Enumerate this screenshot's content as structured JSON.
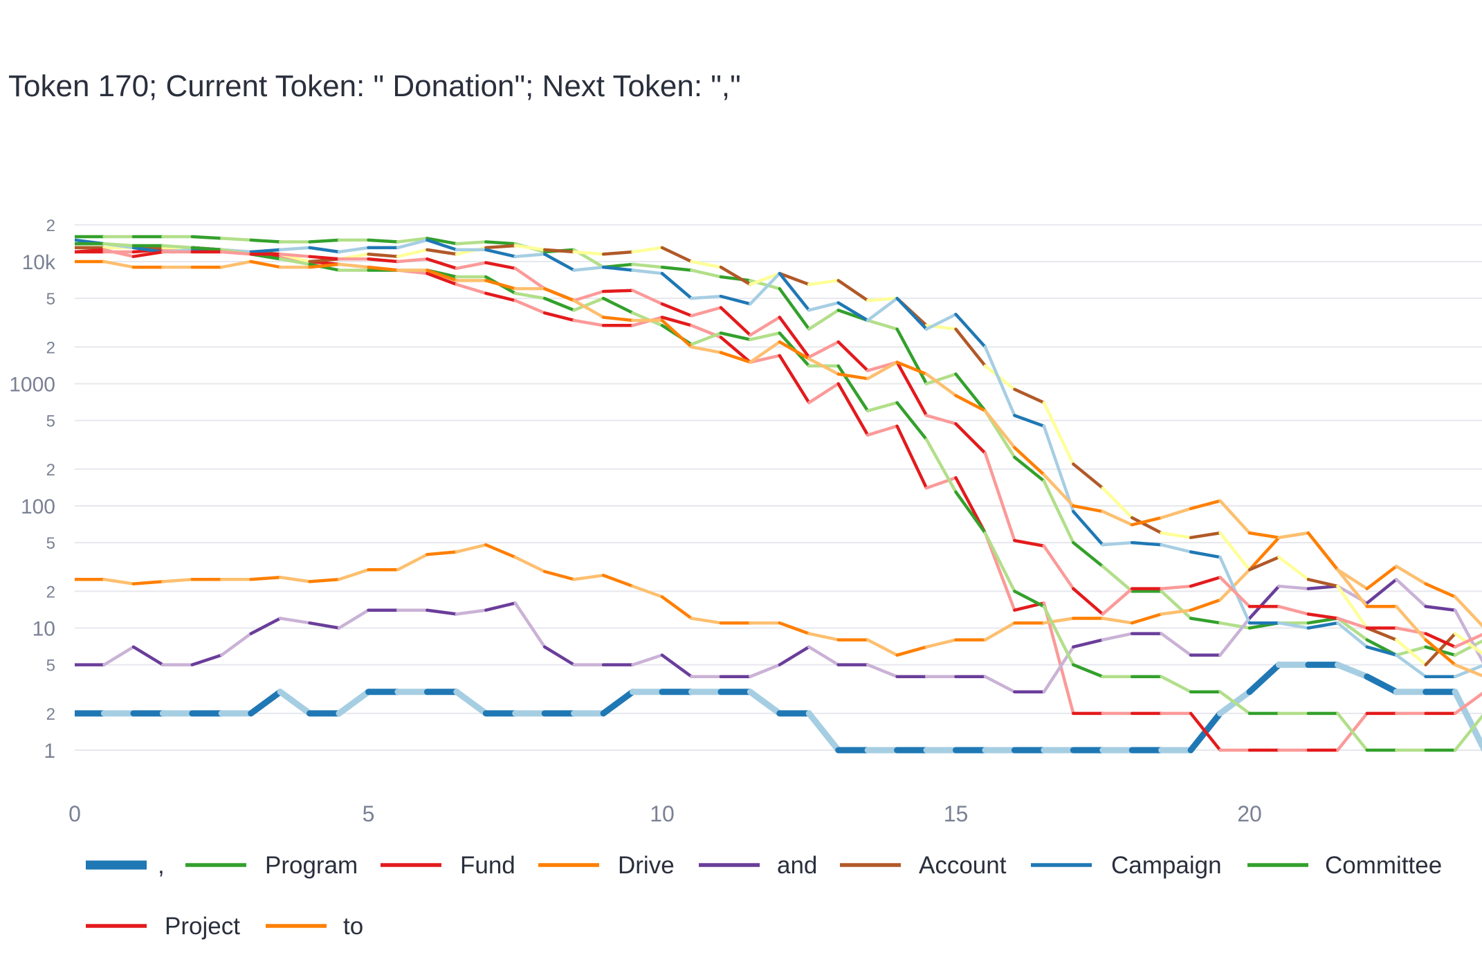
{
  "title": "Token 170; Current Token: \" Donation\"; Next Token: \",\"",
  "chart_data": {
    "type": "line",
    "title": "Token 170; Current Token: \" Donation\"; Next Token: \",\"",
    "y_scale": "log",
    "ylim": [
      0.6,
      26000
    ],
    "xlim": [
      0,
      24
    ],
    "y_major_ticks": [
      {
        "v": 1,
        "label": "1"
      },
      {
        "v": 10,
        "label": "10"
      },
      {
        "v": 100,
        "label": "100"
      },
      {
        "v": 1000,
        "label": "1000"
      },
      {
        "v": 10000,
        "label": "10k"
      }
    ],
    "y_minor_ticks": [
      {
        "v": 2,
        "label": "2"
      },
      {
        "v": 5,
        "label": "5"
      },
      {
        "v": 20,
        "label": "2"
      },
      {
        "v": 50,
        "label": "5"
      },
      {
        "v": 200,
        "label": "2"
      },
      {
        "v": 500,
        "label": "5"
      },
      {
        "v": 2000,
        "label": "2"
      },
      {
        "v": 5000,
        "label": "5"
      },
      {
        "v": 20000,
        "label": "2"
      }
    ],
    "x_ticks": [
      0,
      5,
      10,
      15,
      20
    ],
    "grid": true,
    "legend_position": "bottom",
    "x": [
      0,
      0.5,
      1,
      1.5,
      2,
      2.5,
      3,
      3.5,
      4,
      4.5,
      5,
      5.5,
      6,
      6.5,
      7,
      7.5,
      8,
      8.5,
      9,
      9.5,
      10,
      10.5,
      11,
      11.5,
      12,
      12.5,
      13,
      13.5,
      14,
      14.5,
      15,
      15.5,
      16,
      16.5,
      17,
      17.5,
      18,
      18.5,
      19,
      19.5,
      20,
      20.5,
      21,
      21.5,
      22,
      22.5,
      23,
      23.5,
      24
    ],
    "series": [
      {
        "name": ",",
        "color": "#1f78b4",
        "light": "#a6cee3",
        "width": 9,
        "values": [
          2,
          2,
          2,
          2,
          2,
          2,
          2,
          3,
          2,
          2,
          3,
          3,
          3,
          3,
          2,
          2,
          2,
          2,
          2,
          3,
          3,
          3,
          3,
          3,
          2,
          2,
          1,
          1,
          1,
          1,
          1,
          1,
          1,
          1,
          1,
          1,
          1,
          1,
          1,
          2,
          3,
          5,
          5,
          5,
          4,
          3,
          3,
          3,
          1
        ]
      },
      {
        "name": "Program",
        "color": "#33a02c",
        "light": "#b2df8a",
        "width": 4.5,
        "values": [
          16000,
          16000,
          16000,
          16000,
          16000,
          15500,
          15000,
          14500,
          14500,
          15000,
          15000,
          14500,
          15500,
          14000,
          14500,
          14000,
          12000,
          12500,
          9000,
          9500,
          9000,
          8500,
          7500,
          7000,
          6000,
          2800,
          4000,
          3300,
          2800,
          1000,
          1200,
          600,
          250,
          160,
          50,
          32,
          20,
          20,
          12,
          11,
          10,
          11,
          11,
          12,
          8,
          6,
          7,
          6,
          8
        ]
      },
      {
        "name": "Fund",
        "color": "#e31a1c",
        "light": "#fb9a99",
        "width": 4.5,
        "values": [
          12000,
          12000,
          12000,
          12500,
          13000,
          12500,
          12000,
          11000,
          10000,
          9500,
          9000,
          8500,
          8000,
          6500,
          5500,
          4800,
          3800,
          3300,
          3000,
          3000,
          3500,
          3000,
          2400,
          1500,
          1700,
          700,
          1000,
          380,
          450,
          140,
          170,
          60,
          14,
          16,
          2,
          2,
          2,
          2,
          2,
          1,
          1,
          1,
          1,
          1,
          2,
          2,
          2,
          2,
          3
        ]
      },
      {
        "name": "Drive",
        "color": "#ff7f00",
        "light": "#fdbf6f",
        "width": 4.5,
        "values": [
          25,
          25,
          23,
          24,
          25,
          25,
          25,
          26,
          24,
          25,
          30,
          30,
          40,
          42,
          48,
          38,
          29,
          25,
          27,
          22,
          18,
          12,
          11,
          11,
          11,
          9,
          8,
          8,
          6,
          7,
          8,
          8,
          11,
          11,
          12,
          12,
          11,
          13,
          14,
          17,
          30,
          55,
          60,
          30,
          21,
          32,
          23,
          18,
          10
        ]
      },
      {
        "name": "and",
        "color": "#6a3d9a",
        "light": "#cab2d6",
        "width": 4.5,
        "values": [
          5,
          5,
          7,
          5,
          5,
          6,
          9,
          12,
          11,
          10,
          14,
          14,
          14,
          13,
          14,
          16,
          7,
          5,
          5,
          5,
          6,
          4,
          4,
          4,
          5,
          7,
          5,
          5,
          4,
          4,
          4,
          4,
          3,
          3,
          7,
          8,
          9,
          9,
          6,
          6,
          12,
          22,
          21,
          22,
          16,
          25,
          15,
          14,
          5
        ]
      },
      {
        "name": "Account",
        "color": "#b15928",
        "light": "#ffff99",
        "width": 4.5,
        "values": [
          13000,
          13000,
          13000,
          13000,
          13000,
          12500,
          12000,
          11500,
          10000,
          10500,
          11500,
          11000,
          12500,
          11500,
          13000,
          13500,
          12500,
          12000,
          11500,
          12000,
          13000,
          10000,
          9000,
          6500,
          8000,
          6500,
          7000,
          4800,
          5000,
          3000,
          2800,
          1400,
          900,
          700,
          220,
          140,
          80,
          60,
          55,
          60,
          30,
          38,
          25,
          22,
          10,
          8,
          5,
          9,
          6
        ]
      },
      {
        "name": "Campaign",
        "color": "#1f78b4",
        "light": "#a6cee3",
        "width": 4.5,
        "values": [
          15000,
          14000,
          13000,
          12000,
          12500,
          12500,
          12000,
          12500,
          13000,
          12000,
          13000,
          13000,
          15000,
          12500,
          12500,
          11000,
          11500,
          8500,
          9000,
          8500,
          8000,
          5000,
          5200,
          4500,
          8000,
          4000,
          4600,
          3300,
          5000,
          2800,
          3700,
          2000,
          550,
          450,
          90,
          48,
          50,
          48,
          42,
          38,
          11,
          11,
          10,
          11,
          7,
          6,
          4,
          4,
          5
        ]
      },
      {
        "name": "Committee",
        "color": "#33a02c",
        "light": "#b2df8a",
        "width": 4.5,
        "values": [
          14000,
          14000,
          13500,
          13500,
          13000,
          12500,
          11500,
          10500,
          9500,
          8500,
          8500,
          8500,
          8500,
          7500,
          7500,
          5500,
          5000,
          4000,
          5000,
          3800,
          3000,
          2100,
          2600,
          2300,
          2600,
          1400,
          1400,
          600,
          700,
          350,
          130,
          60,
          20,
          15,
          5,
          4,
          4,
          4,
          3,
          3,
          2,
          2,
          2,
          2,
          1,
          1,
          1,
          1,
          2
        ]
      },
      {
        "name": "Project",
        "color": "#e31a1c",
        "light": "#fb9a99",
        "width": 4.5,
        "values": [
          12000,
          12500,
          11000,
          12000,
          12000,
          12000,
          11500,
          11500,
          11000,
          10500,
          10500,
          10000,
          10500,
          8800,
          9800,
          8800,
          6000,
          4800,
          5700,
          5800,
          4500,
          3600,
          4200,
          2500,
          3500,
          1650,
          2200,
          1280,
          1500,
          550,
          470,
          270,
          52,
          47,
          21,
          13,
          21,
          21,
          22,
          26,
          15,
          15,
          13,
          12,
          10,
          10,
          9,
          7,
          9
        ]
      },
      {
        "name": "to",
        "color": "#ff7f00",
        "light": "#fdbf6f",
        "width": 4.5,
        "values": [
          10000,
          10000,
          9000,
          9000,
          9000,
          9000,
          10000,
          9000,
          9000,
          9500,
          9000,
          8500,
          8500,
          7000,
          7000,
          6000,
          6000,
          4800,
          3500,
          3300,
          3300,
          2000,
          1800,
          1500,
          2200,
          1600,
          1200,
          1100,
          1500,
          1200,
          800,
          600,
          300,
          180,
          100,
          90,
          70,
          80,
          95,
          110,
          60,
          55,
          60,
          30,
          15,
          15,
          8,
          5,
          4
        ]
      }
    ]
  }
}
